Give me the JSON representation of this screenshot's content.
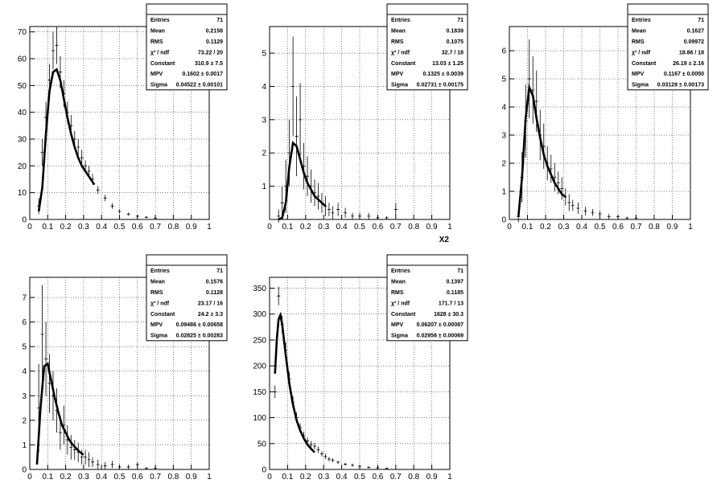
{
  "chart_data": [
    {
      "type": "errorbar",
      "x": [
        0.05,
        0.07,
        0.09,
        0.11,
        0.13,
        0.15,
        0.17,
        0.19,
        0.21,
        0.23,
        0.25,
        0.27,
        0.29,
        0.31,
        0.33,
        0.35,
        0.38,
        0.42,
        0.46,
        0.5,
        0.55,
        0.6,
        0.65,
        0.7
      ],
      "values": [
        5,
        25,
        38,
        52,
        63,
        65,
        55,
        47,
        40,
        35,
        30,
        27,
        23,
        20,
        18,
        15,
        11,
        8,
        5,
        3,
        2,
        1.2,
        0.8,
        0.5
      ],
      "errors": [
        3,
        5,
        6,
        6,
        7,
        7,
        6,
        5,
        4,
        4,
        3,
        3,
        3,
        2,
        2,
        2,
        1.5,
        1.2,
        1,
        0.8,
        0.6,
        0.5,
        0.4,
        0.3
      ],
      "fit_x": [
        0.05,
        0.07,
        0.09,
        0.11,
        0.13,
        0.15,
        0.17,
        0.19,
        0.21,
        0.23,
        0.25,
        0.27,
        0.29,
        0.31,
        0.33,
        0.35,
        0.36
      ],
      "fit_y": [
        3,
        12,
        32,
        48,
        55,
        56,
        52,
        45,
        38,
        32,
        27,
        23,
        20,
        18,
        16,
        14,
        13
      ],
      "xlim": [
        0,
        1
      ],
      "xticks": [
        0,
        0.1,
        0.2,
        0.3,
        0.4,
        0.5,
        0.6,
        0.7,
        0.8,
        0.9,
        1
      ],
      "ylim": [
        0,
        72
      ],
      "yticks": [
        0,
        10,
        20,
        30,
        40,
        50,
        60,
        70
      ],
      "grid": true,
      "stats": [
        [
          "Entries",
          "71"
        ],
        [
          "Mean",
          "0.2158"
        ],
        [
          "RMS",
          "0.1129"
        ],
        [
          "χ² / ndf",
          "73.22 / 20"
        ],
        [
          "Constant",
          "310.9 ± 7.5"
        ],
        [
          "MPV",
          "0.1602 ± 0.0017"
        ],
        [
          "Sigma",
          "0.04522 ± 0.00101"
        ]
      ]
    },
    {
      "type": "errorbar",
      "x": [
        0.05,
        0.07,
        0.09,
        0.11,
        0.13,
        0.15,
        0.17,
        0.19,
        0.21,
        0.23,
        0.25,
        0.27,
        0.29,
        0.31,
        0.33,
        0.35,
        0.38,
        0.42,
        0.46,
        0.5,
        0.55,
        0.6,
        0.65,
        0.7
      ],
      "values": [
        0.1,
        0.5,
        1.0,
        2.0,
        4.0,
        2.5,
        3.0,
        1.6,
        1.3,
        1.0,
        0.8,
        0.7,
        0.5,
        0.4,
        0.3,
        0.2,
        0.3,
        0.2,
        0.1,
        0.1,
        0.1,
        0.05,
        0.05,
        0.3
      ],
      "errors": [
        0.2,
        0.5,
        0.8,
        1.0,
        1.5,
        1.2,
        1.1,
        0.7,
        0.6,
        0.5,
        0.4,
        0.4,
        0.3,
        0.3,
        0.2,
        0.2,
        0.2,
        0.15,
        0.1,
        0.1,
        0.1,
        0.05,
        0.05,
        0.2
      ],
      "fit_x": [
        0.05,
        0.07,
        0.09,
        0.11,
        0.13,
        0.15,
        0.17,
        0.19,
        0.21,
        0.23,
        0.25,
        0.27,
        0.29,
        0.31
      ],
      "fit_y": [
        0,
        0.05,
        0.5,
        1.6,
        2.3,
        2.2,
        1.8,
        1.4,
        1.1,
        0.9,
        0.7,
        0.6,
        0.5,
        0.4
      ],
      "xlim": [
        0,
        1
      ],
      "xticks": [
        0,
        0.1,
        0.2,
        0.3,
        0.4,
        0.5,
        0.6,
        0.7,
        0.8,
        0.9,
        1
      ],
      "ylim": [
        0,
        5.8
      ],
      "yticks": [
        1,
        2,
        3,
        4,
        5
      ],
      "grid": true,
      "xlabel": "X2",
      "stats": [
        [
          "Entries",
          "71"
        ],
        [
          "Mean",
          "0.1839"
        ],
        [
          "RMS",
          "0.1075"
        ],
        [
          "χ² / ndf",
          "32.7 / 18"
        ],
        [
          "Constant",
          "13.03 ± 1.25"
        ],
        [
          "MPV",
          "0.1325 ± 0.0039"
        ],
        [
          "Sigma",
          "0.02731 ± 0.00175"
        ]
      ]
    },
    {
      "type": "errorbar",
      "x": [
        0.05,
        0.07,
        0.09,
        0.11,
        0.13,
        0.15,
        0.17,
        0.19,
        0.21,
        0.23,
        0.25,
        0.27,
        0.29,
        0.31,
        0.33,
        0.35,
        0.38,
        0.42,
        0.46,
        0.5,
        0.55,
        0.6,
        0.65,
        0.7
      ],
      "values": [
        0.1,
        1.5,
        3.5,
        5.0,
        4.6,
        4.2,
        3.0,
        2.6,
        2.0,
        1.8,
        1.5,
        1.3,
        1.1,
        0.8,
        0.6,
        0.5,
        0.4,
        0.3,
        0.25,
        0.2,
        0.1,
        0.1,
        0.05,
        0.05
      ],
      "errors": [
        0.2,
        0.9,
        1.3,
        1.4,
        1.2,
        1.1,
        0.9,
        0.8,
        0.6,
        0.5,
        0.5,
        0.4,
        0.4,
        0.3,
        0.3,
        0.2,
        0.2,
        0.15,
        0.12,
        0.1,
        0.1,
        0.08,
        0.05,
        0.05
      ],
      "fit_x": [
        0.05,
        0.07,
        0.09,
        0.11,
        0.13,
        0.15,
        0.17,
        0.19,
        0.21,
        0.23,
        0.25,
        0.27,
        0.29,
        0.31
      ],
      "fit_y": [
        0.1,
        1.5,
        3.6,
        4.7,
        4.4,
        3.6,
        2.9,
        2.3,
        1.9,
        1.6,
        1.3,
        1.1,
        0.9,
        0.8
      ],
      "xlim": [
        0,
        1
      ],
      "xticks": [
        0,
        0.1,
        0.2,
        0.3,
        0.4,
        0.5,
        0.6,
        0.7,
        0.8,
        0.9,
        1
      ],
      "ylim": [
        0,
        6.86
      ],
      "yticks": [
        0,
        1,
        2,
        3,
        4,
        5,
        6
      ],
      "grid": true,
      "stats": [
        [
          "Entries",
          "71"
        ],
        [
          "Mean",
          "0.1627"
        ],
        [
          "RMS",
          "0.09972"
        ],
        [
          "χ² / ndf",
          "18.86 / 18"
        ],
        [
          "Constant",
          "26.19 ± 2.16"
        ],
        [
          "MPV",
          "0.1167 ± 0.0050"
        ],
        [
          "Sigma",
          "0.03128 ± 0.00173"
        ]
      ]
    },
    {
      "type": "errorbar",
      "x": [
        0.05,
        0.07,
        0.09,
        0.11,
        0.13,
        0.15,
        0.17,
        0.19,
        0.21,
        0.23,
        0.25,
        0.27,
        0.29,
        0.31,
        0.33,
        0.35,
        0.38,
        0.42,
        0.46,
        0.5,
        0.55,
        0.6,
        0.65,
        0.7
      ],
      "values": [
        2.5,
        5.5,
        4.5,
        3.5,
        3.0,
        2.4,
        1.5,
        1.8,
        1.2,
        0.9,
        0.8,
        0.7,
        0.5,
        0.5,
        0.4,
        0.3,
        0.2,
        0.15,
        0.2,
        0.1,
        0.1,
        0.2,
        0.05,
        0.05
      ],
      "errors": [
        1.8,
        2.0,
        1.5,
        1.2,
        1.0,
        0.9,
        0.7,
        0.8,
        0.6,
        0.5,
        0.4,
        0.4,
        0.3,
        0.3,
        0.3,
        0.2,
        0.2,
        0.15,
        0.15,
        0.1,
        0.1,
        0.1,
        0.05,
        0.05
      ],
      "fit_x": [
        0.04,
        0.06,
        0.08,
        0.1,
        0.12,
        0.14,
        0.16,
        0.18,
        0.2,
        0.22,
        0.24,
        0.26,
        0.28,
        0.3
      ],
      "fit_y": [
        0.2,
        2.5,
        4.2,
        4.3,
        3.6,
        2.9,
        2.3,
        1.8,
        1.5,
        1.2,
        1.0,
        0.85,
        0.7,
        0.6
      ],
      "xlim": [
        0,
        1
      ],
      "xticks": [
        0,
        0.1,
        0.2,
        0.3,
        0.4,
        0.5,
        0.6,
        0.7,
        0.8,
        0.9,
        1
      ],
      "ylim": [
        0,
        7.82
      ],
      "yticks": [
        0,
        1,
        2,
        3,
        4,
        5,
        6,
        7
      ],
      "grid": true,
      "stats": [
        [
          "Entries",
          "71"
        ],
        [
          "Mean",
          "0.1576"
        ],
        [
          "RMS",
          "0.1128"
        ],
        [
          "χ² / ndf",
          "23.17 / 16"
        ],
        [
          "Constant",
          "24.2 ± 3.3"
        ],
        [
          "MPV",
          "0.09486 ± 0.00658"
        ],
        [
          "Sigma",
          "0.02825 ± 0.00283"
        ]
      ]
    },
    {
      "type": "errorbar",
      "x": [
        0.03,
        0.05,
        0.07,
        0.09,
        0.11,
        0.13,
        0.15,
        0.17,
        0.19,
        0.21,
        0.23,
        0.25,
        0.27,
        0.29,
        0.31,
        0.33,
        0.35,
        0.38,
        0.42,
        0.46,
        0.5,
        0.55,
        0.6,
        0.65
      ],
      "values": [
        150,
        335,
        280,
        230,
        175,
        130,
        100,
        80,
        65,
        55,
        48,
        45,
        38,
        30,
        25,
        20,
        18,
        14,
        10,
        8,
        6,
        4,
        3,
        2
      ],
      "errors": [
        12,
        18,
        17,
        15,
        13,
        11,
        10,
        9,
        8,
        7,
        7,
        6,
        6,
        5,
        5,
        4,
        4,
        3,
        3,
        3,
        2,
        2,
        2,
        1.5
      ],
      "fit_x": [
        0.03,
        0.04,
        0.05,
        0.06,
        0.07,
        0.09,
        0.11,
        0.13,
        0.15,
        0.17,
        0.19,
        0.21,
        0.23,
        0.25
      ],
      "fit_y": [
        185,
        250,
        290,
        298,
        280,
        220,
        165,
        125,
        95,
        75,
        60,
        48,
        40,
        33
      ],
      "xlim": [
        0,
        1
      ],
      "xticks": [
        0,
        0.1,
        0.2,
        0.3,
        0.4,
        0.5,
        0.6,
        0.7,
        0.8,
        0.9,
        1
      ],
      "ylim": [
        0,
        371
      ],
      "yticks": [
        0,
        50,
        100,
        150,
        200,
        250,
        300,
        350
      ],
      "grid": true,
      "stats": [
        [
          "Entries",
          "71"
        ],
        [
          "Mean",
          "0.1397"
        ],
        [
          "RMS",
          "0.1185"
        ],
        [
          "χ² / ndf",
          "171.7 / 13"
        ],
        [
          "Constant",
          "1628 ± 30.3"
        ],
        [
          "MPV",
          "0.06207 ± 0.00087"
        ],
        [
          "Sigma",
          "0.02956 ± 0.00069"
        ]
      ]
    }
  ]
}
